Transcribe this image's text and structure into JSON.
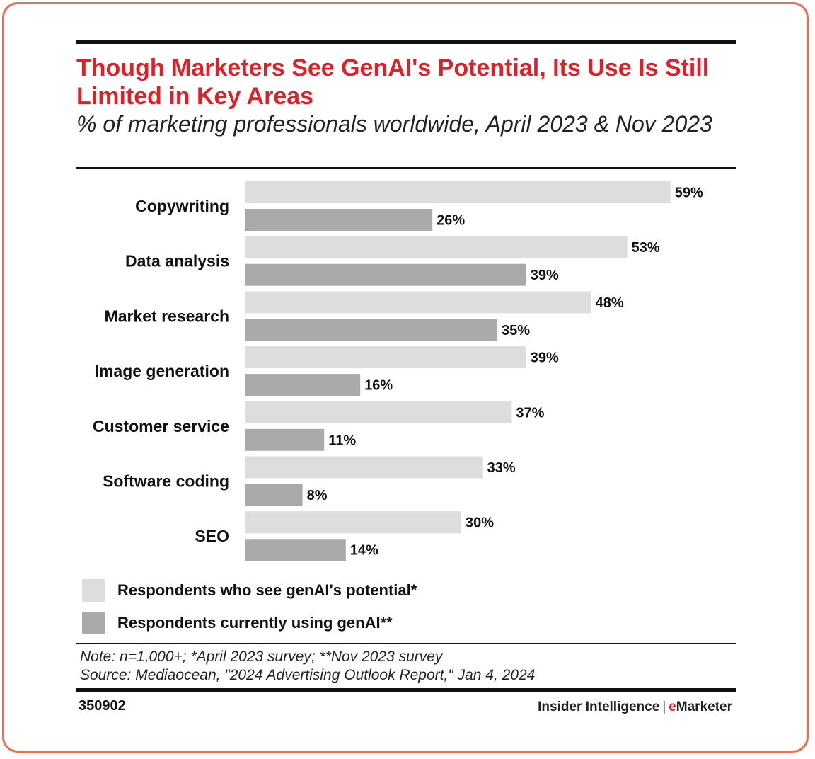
{
  "title": "Though Marketers See GenAI's Potential, Its Use Is Still Limited in Key Areas",
  "subtitle": "% of marketing professionals worldwide, April 2023 & Nov 2023",
  "colors": {
    "accent": "#e21f26",
    "border": "#f46a4c",
    "series_1": "#dddddd",
    "series_2": "#aaaaaa"
  },
  "chart_data": {
    "type": "bar",
    "orientation": "horizontal",
    "categories": [
      "Copywriting",
      "Data analysis",
      "Market research",
      "Image generation",
      "Customer service",
      "Software coding",
      "SEO"
    ],
    "series": [
      {
        "name": "Respondents who see genAI's potential*",
        "values": [
          59,
          53,
          48,
          39,
          37,
          33,
          30
        ],
        "labels": [
          "59%",
          "53%",
          "48%",
          "39%",
          "37%",
          "33%",
          "30%"
        ],
        "color": "#dddddd"
      },
      {
        "name": "Respondents currently using genAI**",
        "values": [
          26,
          39,
          35,
          16,
          11,
          8,
          14
        ],
        "labels": [
          "26%",
          "39%",
          "35%",
          "16%",
          "11%",
          "8%",
          "14%"
        ],
        "color": "#aaaaaa"
      }
    ],
    "xlim": [
      0,
      60
    ],
    "grid": false,
    "legend_position": "bottom"
  },
  "note": "Note: n=1,000+; *April 2023 survey; **Nov 2023 survey",
  "source": "Source: Mediaocean, \"2024 Advertising Outlook Report,\" Jan 4, 2024",
  "chart_id": "350902",
  "brand": {
    "part1": "Insider Intelligence",
    "separator": "|",
    "accent_letter": "e",
    "part2": "Marketer"
  }
}
